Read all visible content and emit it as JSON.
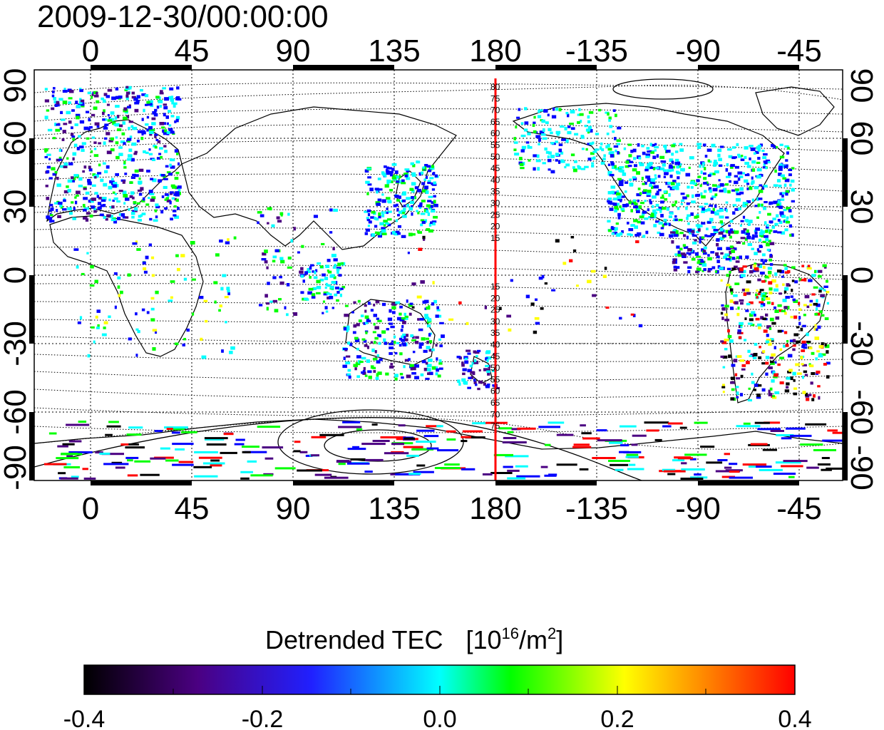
{
  "timestamp": "2009-12-30/00:00:00",
  "map": {
    "lon_ticks": [
      "0",
      "45",
      "90",
      "135",
      "180",
      "-135",
      "-90",
      "-45"
    ],
    "lat_ticks": [
      "90",
      "60",
      "30",
      "0",
      "-30",
      "-60",
      "-90"
    ],
    "meridian_line_color": "#ff0000",
    "meridian_labels_north": [
      "80",
      "75",
      "70",
      "65",
      "60",
      "55",
      "50",
      "45",
      "40",
      "35",
      "30",
      "25",
      "20",
      "15"
    ],
    "meridian_labels_south": [
      "15",
      "20",
      "25",
      "30",
      "35",
      "40",
      "45",
      "50",
      "55",
      "60",
      "65",
      "70",
      "75"
    ]
  },
  "colorbar": {
    "title_main": "Detrended TEC",
    "title_unit_open": "[10",
    "title_unit_exp1": "16",
    "title_unit_mid": "/m",
    "title_unit_exp2": "2",
    "title_unit_close": "]",
    "tick_labels": [
      "-0.4",
      "-0.2",
      "0.0",
      "0.2",
      "0.4"
    ],
    "colors": [
      "#000000",
      "#4b0082",
      "#0000ff",
      "#00ffff",
      "#00ff00",
      "#ffff00",
      "#ff0000"
    ]
  }
}
